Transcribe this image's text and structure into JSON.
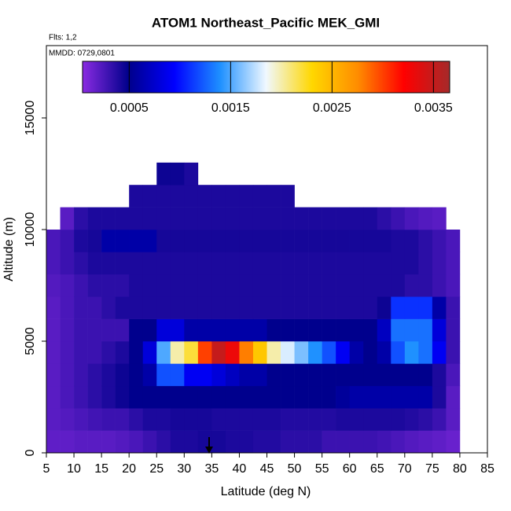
{
  "chart_data": {
    "type": "heatmap",
    "title": "ATOM1 Northeast_Pacific MEK_GMI",
    "subtitle": "Flts: 1,2",
    "annotation": "MMDD: 0729,0801",
    "x_label": "Latitude (deg N)",
    "y_label": "Altitude (m)",
    "xlim": [
      5,
      85
    ],
    "xticks": [
      5,
      10,
      15,
      20,
      25,
      30,
      35,
      40,
      45,
      50,
      55,
      60,
      65,
      70,
      75,
      80,
      85
    ],
    "ylim": [
      0,
      18240
    ],
    "yticks": [
      0,
      5000,
      10000,
      15000
    ],
    "xbins": [
      5,
      7.5,
      10,
      12.5,
      15,
      17.5,
      20,
      22.5,
      25,
      27.5,
      30,
      32.5,
      35,
      37.5,
      40,
      42.5,
      45,
      47.5,
      50,
      52.5,
      55,
      57.5,
      60,
      62.5,
      65,
      67.5,
      70,
      72.5,
      75,
      77.5,
      80
    ],
    "ybins": [
      0,
      1000,
      2000,
      3000,
      4000,
      5000,
      6000,
      7000,
      8000,
      9000,
      10000,
      11000,
      12000,
      13000
    ],
    "values": [
      [
        0.00018,
        0.00018,
        0.0002,
        0.0002,
        0.0002,
        0.00022,
        0.00025,
        0.0003,
        0.00035,
        0.0004,
        0.0004,
        0.00042,
        0.00042,
        0.0004,
        0.0004,
        0.00038,
        0.00038,
        0.00035,
        0.00035,
        0.00035,
        0.0003,
        0.0003,
        0.0003,
        0.0003,
        0.00028,
        0.00025,
        0.00022,
        0.0002,
        0.00018,
        0.00015
      ],
      [
        0.0002,
        0.00022,
        0.00025,
        0.00028,
        0.0003,
        0.0003,
        0.00035,
        0.0004,
        0.0004,
        0.00042,
        0.00042,
        0.00042,
        0.0004,
        0.0004,
        0.0004,
        0.0004,
        0.0004,
        0.00038,
        0.00038,
        0.00038,
        0.00038,
        0.0004,
        0.0004,
        0.0004,
        0.0004,
        0.0004,
        0.00038,
        0.00035,
        0.0003,
        0.0002
      ],
      [
        0.0002,
        0.00025,
        0.0003,
        0.00035,
        0.0004,
        0.00045,
        0.0005,
        0.0005,
        0.0005,
        0.0005,
        0.0005,
        0.0005,
        0.0005,
        0.0005,
        0.0005,
        0.0005,
        0.0005,
        0.0005,
        0.0005,
        0.0005,
        0.0005,
        0.00055,
        0.0006,
        0.0006,
        0.0006,
        0.0006,
        0.0006,
        0.0006,
        0.0004,
        0.0002
      ],
      [
        0.0002,
        0.00025,
        0.0003,
        0.00035,
        0.0004,
        0.00045,
        0.0005,
        0.0006,
        0.0012,
        0.0012,
        0.0009,
        0.0009,
        0.0008,
        0.0007,
        0.0006,
        0.0006,
        0.0005,
        0.0005,
        0.0005,
        0.0005,
        0.0005,
        0.0005,
        0.0005,
        0.0005,
        0.0005,
        0.0005,
        0.0005,
        0.0005,
        0.0004,
        0.00025
      ],
      [
        0.0002,
        0.00025,
        0.0003,
        0.0003,
        0.00035,
        0.0004,
        0.0005,
        0.0008,
        0.0015,
        0.002,
        0.0022,
        0.003,
        0.0035,
        0.0033,
        0.0028,
        0.0024,
        0.002,
        0.0018,
        0.0016,
        0.0014,
        0.0012,
        0.0009,
        0.0006,
        0.0005,
        0.0006,
        0.0012,
        0.0014,
        0.0013,
        0.0009,
        0.0003
      ],
      [
        0.0002,
        0.00025,
        0.0003,
        0.0003,
        0.0003,
        0.0003,
        0.0005,
        0.0005,
        0.0008,
        0.0008,
        0.0006,
        0.0006,
        0.0006,
        0.0006,
        0.0006,
        0.0006,
        0.0005,
        0.0005,
        0.0005,
        0.0005,
        0.0005,
        0.0005,
        0.0005,
        0.0005,
        0.0007,
        0.0013,
        0.0013,
        0.0013,
        0.0008,
        0.0003
      ],
      [
        0.0002,
        0.00025,
        0.0003,
        0.0003,
        0.00035,
        0.0004,
        0.0004,
        0.0004,
        0.0004,
        0.0004,
        0.0004,
        0.0004,
        0.0004,
        0.0004,
        0.0004,
        0.0004,
        0.0004,
        0.0004,
        0.0004,
        0.0004,
        0.0004,
        0.0004,
        0.0004,
        0.0004,
        0.00045,
        0.0011,
        0.0011,
        0.0011,
        0.0006,
        0.0003
      ],
      [
        0.00022,
        0.00025,
        0.0003,
        0.00035,
        0.00035,
        0.00035,
        0.0004,
        0.0004,
        0.0004,
        0.0004,
        0.0004,
        0.0004,
        0.0004,
        0.0004,
        0.0004,
        0.0004,
        0.0004,
        0.0004,
        0.0004,
        0.0004,
        0.0004,
        0.0004,
        0.0004,
        0.0004,
        0.0004,
        0.0004,
        0.00035,
        0.00035,
        0.0003,
        0.00025
      ],
      [
        0.00025,
        0.0003,
        0.00035,
        0.0004,
        0.0004,
        0.0004,
        0.0004,
        0.0004,
        0.0004,
        0.0004,
        0.0004,
        0.0004,
        0.0004,
        0.0004,
        0.0004,
        0.0004,
        0.0004,
        0.0004,
        0.0004,
        0.0004,
        0.0004,
        0.0004,
        0.0004,
        0.0004,
        0.0004,
        0.0004,
        0.0004,
        0.00035,
        0.0003,
        0.00025
      ],
      [
        0.00025,
        0.0003,
        0.0004,
        0.00042,
        0.0006,
        0.0006,
        0.0006,
        0.0006,
        0.00042,
        0.00042,
        0.00042,
        0.00042,
        0.00042,
        0.00042,
        0.00042,
        0.00042,
        0.00042,
        0.00042,
        0.00042,
        0.00042,
        0.00042,
        0.00042,
        0.00042,
        0.00042,
        0.00042,
        0.0004,
        0.0004,
        0.00035,
        0.0003,
        0.00025
      ],
      [
        null,
        0.0002,
        0.00035,
        0.0004,
        0.0004,
        0.0004,
        0.0004,
        0.0004,
        0.0004,
        0.0004,
        0.0004,
        0.0004,
        0.0004,
        0.0004,
        0.0004,
        0.0004,
        0.0004,
        0.0004,
        0.0004,
        0.0004,
        0.0004,
        0.0004,
        0.0004,
        0.0004,
        0.00035,
        0.0003,
        0.00025,
        0.00022,
        0.0002,
        null
      ],
      [
        null,
        null,
        null,
        null,
        null,
        null,
        0.0004,
        0.0004,
        0.0004,
        0.0004,
        0.0004,
        0.0004,
        0.0004,
        0.0004,
        0.0004,
        0.0004,
        0.0004,
        0.0004,
        null,
        null,
        null,
        null,
        null,
        null,
        null,
        null,
        null,
        null,
        null,
        null
      ],
      [
        null,
        null,
        null,
        null,
        null,
        null,
        null,
        null,
        0.00045,
        0.00045,
        0.0004,
        null,
        null,
        null,
        null,
        null,
        null,
        null,
        null,
        null,
        null,
        null,
        null,
        null,
        null,
        null,
        null,
        null,
        null,
        null
      ]
    ],
    "colors": [
      "#8a2be2",
      "#00008b",
      "#0000ff",
      "#1e90ff",
      "#f0f8ff",
      "#ffd700",
      "#ff8c00",
      "#ff0000",
      "#a52a2a"
    ],
    "colorlim": [
      4e-05,
      0.00366
    ],
    "colorbar_ticks": [
      0.0005,
      0.0015,
      0.0025,
      0.0035
    ]
  }
}
